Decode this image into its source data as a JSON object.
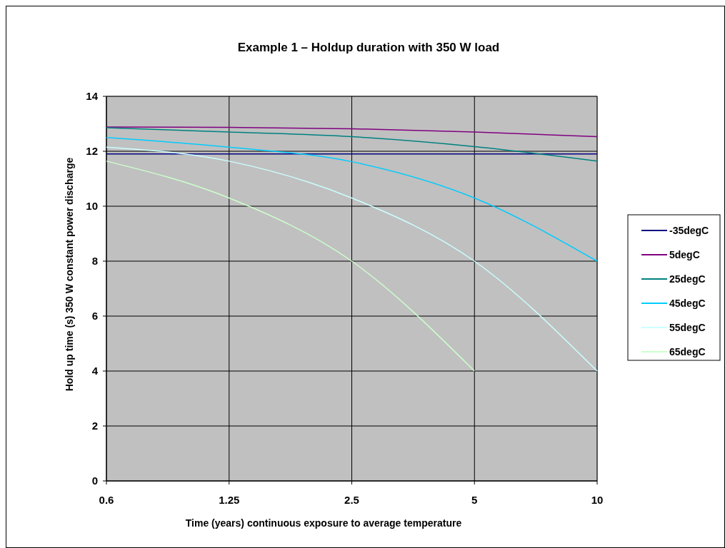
{
  "chart_data": {
    "type": "line",
    "title": "Example 1 – Holdup duration with 350 W load",
    "xlabel": "Time (years) continuous exposure to average temperature",
    "ylabel": "Hold up time (s)  350 W constant power discharge",
    "categories": [
      "0.6",
      "1.25",
      "2.5",
      "5",
      "10"
    ],
    "ylim": [
      0,
      14
    ],
    "yticks": [
      0,
      2,
      4,
      6,
      8,
      10,
      12,
      14
    ],
    "grid": true,
    "legend": "right",
    "marker": "none",
    "line_style": "solid",
    "series": [
      {
        "name": "-35degC",
        "color": "#000080",
        "values": [
          11.9,
          11.9,
          11.9,
          11.9,
          11.9
        ]
      },
      {
        "name": "5degC",
        "color": "#800080",
        "values": [
          12.88,
          12.87,
          12.82,
          12.7,
          12.53
        ]
      },
      {
        "name": "25degC",
        "color": "#008080",
        "values": [
          12.86,
          12.7,
          12.53,
          12.17,
          11.64
        ]
      },
      {
        "name": "45degC",
        "color": "#00ccff",
        "values": [
          12.5,
          12.15,
          11.62,
          10.3,
          8
        ]
      },
      {
        "name": "55degC",
        "color": "#ccffff",
        "values": [
          12.15,
          11.64,
          10.3,
          8,
          4
        ]
      },
      {
        "name": "65degC",
        "color": "#ccffcc",
        "values": [
          11.64,
          10.3,
          8,
          4,
          null
        ]
      }
    ]
  }
}
